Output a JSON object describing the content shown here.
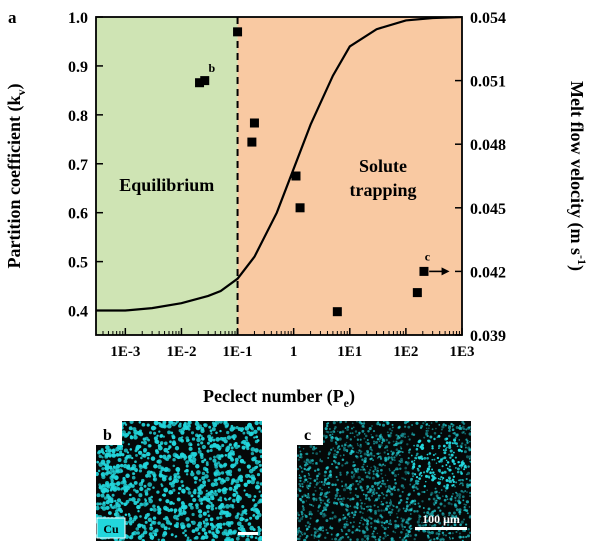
{
  "panels": {
    "a": "a",
    "b": "b",
    "c": "c"
  },
  "colors": {
    "equilibrium_bg": "#cfe4b4",
    "trapping_bg": "#f9c9a2",
    "curve": "#000000",
    "points": "#000000",
    "eds_bg": "#050808",
    "eds_signal": "#22d6dc"
  },
  "chart_data": {
    "type": "scatter",
    "xlabel": "Peclect number (P",
    "xlabel_sub": "e",
    "xlabel_end": ")",
    "ylabel": "Partition coefficient (k",
    "ylabel_sub": "v",
    "ylabel_end": ")",
    "y2label": "Melt flow velocity (m s",
    "y2label_sup": "-1",
    "y2label_end": ")",
    "x_scale": "log",
    "xlim": [
      0.0003,
      1000
    ],
    "ylim": [
      0.35,
      1.0
    ],
    "y2lim": [
      0.039,
      0.054
    ],
    "x_ticks": [
      0.001,
      0.01,
      0.1,
      1,
      10,
      100,
      1000
    ],
    "x_tick_labels": [
      "1E-3",
      "1E-2",
      "1E-1",
      "1",
      "1E1",
      "1E2",
      "1E3"
    ],
    "y_ticks": [
      0.4,
      0.5,
      0.6,
      0.7,
      0.8,
      0.9,
      1.0
    ],
    "y_tick_labels": [
      "0.4",
      "0.5",
      "0.6",
      "0.7",
      "0.8",
      "0.9",
      "1.0"
    ],
    "y2_ticks": [
      0.039,
      0.042,
      0.045,
      0.048,
      0.051,
      0.054
    ],
    "y2_tick_labels": [
      "0.039",
      "0.042",
      "0.045",
      "0.048",
      "0.051",
      "0.054"
    ],
    "divider_x": 0.1,
    "regions": [
      {
        "label": "Equilibrium",
        "lines": [
          "Equilibrium"
        ],
        "x_range": [
          0.0003,
          0.1
        ]
      },
      {
        "label": "Solute trapping",
        "lines": [
          "Solute",
          "trapping"
        ],
        "x_range": [
          0.1,
          1000
        ]
      }
    ],
    "curve": {
      "name": "",
      "x": [
        0.0003,
        0.001,
        0.003,
        0.01,
        0.03,
        0.05,
        0.1,
        0.2,
        0.5,
        1,
        2,
        5,
        10,
        30,
        100,
        300,
        1000
      ],
      "y": [
        0.4,
        0.4,
        0.405,
        0.415,
        0.43,
        0.44,
        0.465,
        0.51,
        0.6,
        0.69,
        0.78,
        0.88,
        0.94,
        0.975,
        0.993,
        0.998,
        1.0
      ]
    },
    "points": [
      {
        "x": 0.1,
        "y2": 0.0533
      },
      {
        "x": 0.021,
        "y2": 0.0509
      },
      {
        "x": 0.026,
        "y2": 0.051
      },
      {
        "x": 0.2,
        "y2": 0.049
      },
      {
        "x": 0.18,
        "y2": 0.0481
      },
      {
        "x": 1.1,
        "y2": 0.0465
      },
      {
        "x": 1.3,
        "y2": 0.045
      },
      {
        "x": 6,
        "y2": 0.0401
      },
      {
        "x": 160,
        "y2": 0.041
      },
      {
        "x": 210,
        "y2": 0.042
      }
    ],
    "annotations": [
      {
        "text": "b",
        "x": 0.028,
        "y2": 0.0516
      },
      {
        "text": "c",
        "x": 200,
        "y2": 0.0427
      }
    ],
    "arrow": {
      "from_x": 260,
      "to_x": 600,
      "y2": 0.042
    }
  },
  "insets": {
    "b": {
      "element_label": "Cu"
    },
    "c": {
      "scale_label": "100 μm"
    }
  }
}
